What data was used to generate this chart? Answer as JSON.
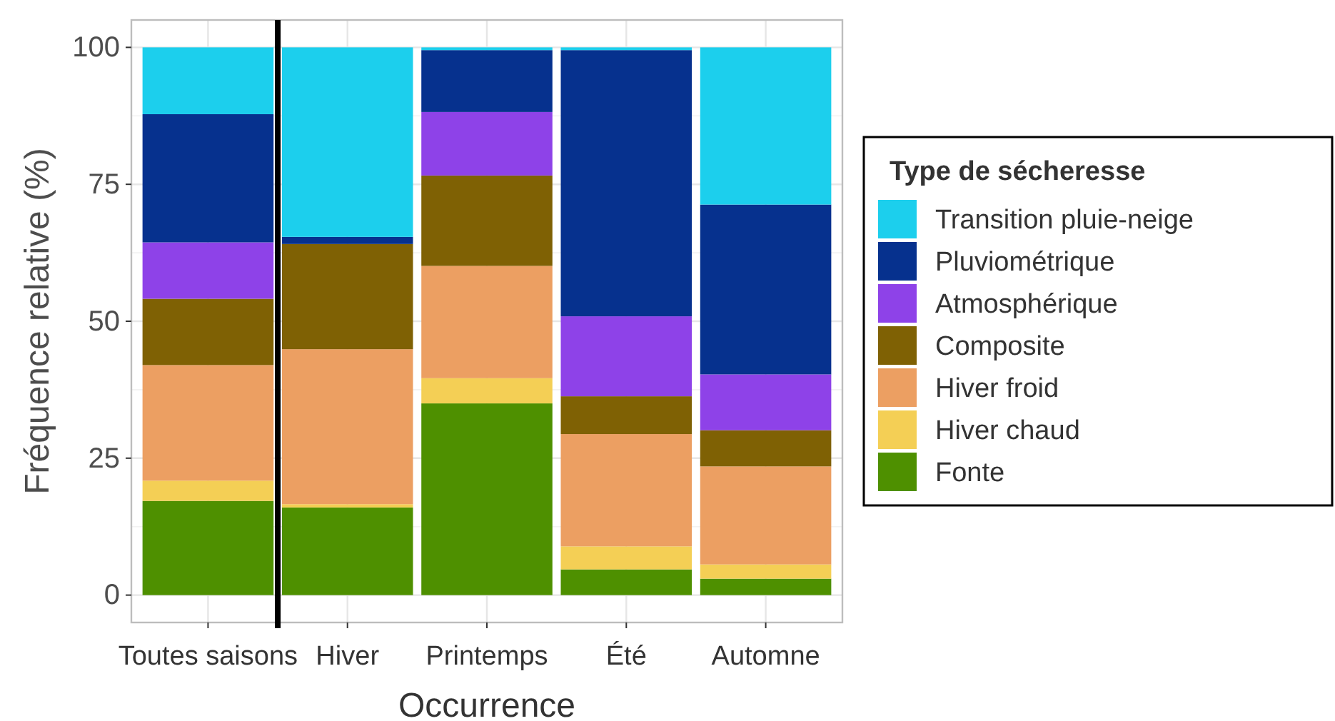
{
  "chart_data": {
    "type": "bar",
    "stacked": true,
    "xlabel": "Occurrence",
    "ylabel": "Fréquence relative (%)",
    "legend_title": "Type de sécheresse",
    "categories": [
      "Toutes saisons",
      "Hiver",
      "Printemps",
      "Été",
      "Automne"
    ],
    "series": [
      {
        "name": "Fonte",
        "color": "#4e9000",
        "values": [
          17.2,
          16.0,
          35.0,
          4.7,
          3.0
        ]
      },
      {
        "name": "Hiver chaud",
        "color": "#f4cf55",
        "values": [
          3.7,
          0.6,
          4.6,
          4.2,
          2.6
        ]
      },
      {
        "name": "Hiver froid",
        "color": "#ec9f62",
        "values": [
          21.1,
          28.3,
          20.5,
          20.5,
          17.9
        ]
      },
      {
        "name": "Composite",
        "color": "#7f6104",
        "values": [
          12.1,
          19.2,
          16.5,
          6.9,
          6.6
        ]
      },
      {
        "name": "Atmosphérique",
        "color": "#8e42e8",
        "values": [
          10.3,
          0,
          11.6,
          14.6,
          10.2
        ]
      },
      {
        "name": "Pluviométrique",
        "color": "#06318e",
        "values": [
          23.4,
          1.3,
          11.3,
          48.6,
          31.0
        ]
      },
      {
        "name": "Transition pluie-neige",
        "color": "#1ccfed",
        "values": [
          12.2,
          34.6,
          0.5,
          0.5,
          28.7
        ]
      }
    ],
    "ylim": [
      -5,
      105
    ],
    "yticks": [
      0,
      25,
      50,
      75,
      100
    ],
    "grid": true,
    "legend": "right"
  }
}
